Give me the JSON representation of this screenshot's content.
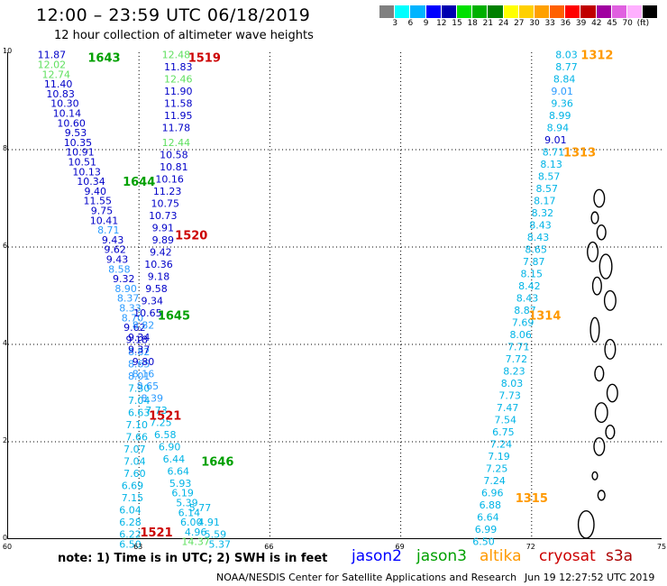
{
  "header": {
    "title": "12:00 – 23:59 UTC 06/18/2019",
    "subtitle": "12 hour collection of altimeter wave heights"
  },
  "color_scale": {
    "colors": [
      "#808080",
      "#00ffff",
      "#00b4ff",
      "#0000ff",
      "#0000b0",
      "#00e000",
      "#00b000",
      "#008000",
      "#ffff00",
      "#ffd000",
      "#ffa000",
      "#ff6000",
      "#ff0000",
      "#c00000",
      "#a000a0",
      "#e060e0",
      "#ffb0ff",
      "#000000"
    ],
    "labels": [
      "3",
      "6",
      "9",
      "12",
      "15",
      "18",
      "21",
      "24",
      "27",
      "30",
      "33",
      "36",
      "39",
      "42",
      "45",
      "70",
      "(ft)"
    ]
  },
  "axes": {
    "x_ticks": [
      "60",
      "63",
      "66",
      "69",
      "72",
      "75"
    ],
    "y_ticks": [
      "0",
      "2",
      "4",
      "6",
      "8",
      "10"
    ],
    "xlim": [
      60,
      75
    ],
    "ylim": [
      0,
      10
    ]
  },
  "satellite_colors": {
    "jason2": "#0000ff",
    "jason3": "#00a000",
    "altika": "#ff9900",
    "cryosat": "#cc0000",
    "s3a": "#aa0000"
  },
  "level_colors": {
    "c6": "#00b4e6",
    "c9": "#2b9bff",
    "c12": "#0000c8",
    "c15": "#60e060"
  },
  "pass_labels": [
    {
      "text": "1643",
      "lon": 62.2,
      "lat": 9.9,
      "sat": "jason3"
    },
    {
      "text": "1519",
      "lon": 64.5,
      "lat": 9.9,
      "sat": "cryosat"
    },
    {
      "text": "1312",
      "lon": 73.5,
      "lat": 9.95,
      "sat": "altika"
    },
    {
      "text": "1313",
      "lon": 73.1,
      "lat": 7.95,
      "sat": "altika"
    },
    {
      "text": "1644",
      "lon": 63.0,
      "lat": 7.35,
      "sat": "jason3"
    },
    {
      "text": "1520",
      "lon": 64.2,
      "lat": 6.25,
      "sat": "cryosat"
    },
    {
      "text": "1645",
      "lon": 63.8,
      "lat": 4.6,
      "sat": "jason3"
    },
    {
      "text": "1314",
      "lon": 72.3,
      "lat": 4.6,
      "sat": "altika"
    },
    {
      "text": "1521",
      "lon": 63.6,
      "lat": 2.55,
      "sat": "cryosat"
    },
    {
      "text": "1646",
      "lon": 64.8,
      "lat": 1.6,
      "sat": "jason3"
    },
    {
      "text": "1315",
      "lon": 72.0,
      "lat": 0.85,
      "sat": "altika"
    },
    {
      "text": "1521",
      "lon": 63.4,
      "lat": 0.15,
      "sat": "cryosat"
    }
  ],
  "tracks": [
    {
      "name": "jason3_1643",
      "points": [
        [
          "11.87",
          61.0,
          9.95,
          "c12"
        ],
        [
          "12.02",
          61.0,
          9.75,
          "c15"
        ],
        [
          "12.74",
          61.1,
          9.55,
          "c15"
        ],
        [
          "11.40",
          61.15,
          9.35,
          "c12"
        ],
        [
          "10.83",
          61.2,
          9.15,
          "c12"
        ],
        [
          "10.30",
          61.3,
          8.95,
          "c12"
        ],
        [
          "10.14",
          61.35,
          8.75,
          "c12"
        ],
        [
          "10.60",
          61.45,
          8.55,
          "c12"
        ],
        [
          "9.53",
          61.55,
          8.35,
          "c12"
        ],
        [
          "10.35",
          61.6,
          8.15,
          "c12"
        ],
        [
          "10.91",
          61.65,
          7.95,
          "c12"
        ],
        [
          "10.51",
          61.7,
          7.75,
          "c12"
        ],
        [
          "10.13",
          61.8,
          7.55,
          "c12"
        ],
        [
          "10.34",
          61.9,
          7.35,
          "c12"
        ],
        [
          "9.40",
          62.0,
          7.15,
          "c12"
        ],
        [
          "11.55",
          62.05,
          6.95,
          "c12"
        ],
        [
          "9.75",
          62.15,
          6.75,
          "c12"
        ],
        [
          "10.41",
          62.2,
          6.55,
          "c12"
        ],
        [
          "8.71",
          62.3,
          6.35,
          "c9"
        ],
        [
          "9.43",
          62.4,
          6.15,
          "c12"
        ],
        [
          "9.62",
          62.45,
          5.95,
          "c12"
        ],
        [
          "9.43",
          62.5,
          5.75,
          "c12"
        ],
        [
          "8.58",
          62.55,
          5.55,
          "c9"
        ],
        [
          "9.32",
          62.65,
          5.35,
          "c12"
        ],
        [
          "8.90",
          62.7,
          5.15,
          "c9"
        ],
        [
          "8.37",
          62.75,
          4.95,
          "c9"
        ],
        [
          "8.33",
          62.8,
          4.75,
          "c9"
        ],
        [
          "8.70",
          62.85,
          4.55,
          "c9"
        ],
        [
          "9.62",
          62.9,
          4.35,
          "c12"
        ],
        [
          "9.18",
          62.95,
          4.1,
          "c12"
        ],
        [
          "8.82",
          63.0,
          3.85,
          "c9"
        ],
        [
          "8.65",
          63.0,
          3.6,
          "c9"
        ],
        [
          "8.01",
          63.0,
          3.35,
          "c9"
        ],
        [
          "7.30",
          63.0,
          3.1,
          "c6"
        ],
        [
          "7.04",
          63.0,
          2.85,
          "c6"
        ],
        [
          "6.63",
          63.0,
          2.6,
          "c6"
        ],
        [
          "7.10",
          62.95,
          2.35,
          "c6"
        ],
        [
          "7.66",
          62.95,
          2.1,
          "c6"
        ],
        [
          "7.07",
          62.9,
          1.85,
          "c6"
        ],
        [
          "7.04",
          62.9,
          1.6,
          "c6"
        ],
        [
          "7.60",
          62.9,
          1.35,
          "c6"
        ],
        [
          "6.69",
          62.85,
          1.1,
          "c6"
        ],
        [
          "7.15",
          62.85,
          0.85,
          "c6"
        ],
        [
          "6.04",
          62.8,
          0.6,
          "c6"
        ],
        [
          "6.28",
          62.8,
          0.35,
          "c6"
        ],
        [
          "6.22",
          62.8,
          0.1,
          "c6"
        ],
        [
          "6.50",
          62.8,
          -0.1,
          "c6"
        ]
      ]
    },
    {
      "name": "cryosat_1519",
      "points": [
        [
          "12.48",
          63.85,
          9.95,
          "c15"
        ],
        [
          "11.83",
          63.9,
          9.7,
          "c12"
        ],
        [
          "12.46",
          63.9,
          9.45,
          "c15"
        ],
        [
          "11.90",
          63.9,
          9.2,
          "c12"
        ],
        [
          "11.58",
          63.9,
          8.95,
          "c12"
        ],
        [
          "11.95",
          63.9,
          8.7,
          "c12"
        ],
        [
          "11.78",
          63.85,
          8.45,
          "c12"
        ],
        [
          "12.44",
          63.85,
          8.15,
          "c15"
        ],
        [
          "10.58",
          63.8,
          7.9,
          "c12"
        ],
        [
          "10.81",
          63.8,
          7.65,
          "c12"
        ],
        [
          "10.16",
          63.7,
          7.4,
          "c12"
        ],
        [
          "11.23",
          63.65,
          7.15,
          "c12"
        ],
        [
          "10.75",
          63.6,
          6.9,
          "c12"
        ],
        [
          "10.73",
          63.55,
          6.65,
          "c12"
        ],
        [
          "9.91",
          63.55,
          6.4,
          "c12"
        ],
        [
          "9.89",
          63.55,
          6.15,
          "c12"
        ],
        [
          "9.42",
          63.5,
          5.9,
          "c12"
        ],
        [
          "10.36",
          63.45,
          5.65,
          "c12"
        ],
        [
          "9.18",
          63.45,
          5.4,
          "c12"
        ],
        [
          "9.58",
          63.4,
          5.15,
          "c12"
        ],
        [
          "9.34",
          63.3,
          4.9,
          "c12"
        ],
        [
          "10.65",
          63.2,
          4.65,
          "c12"
        ],
        [
          "8.82",
          63.1,
          4.4,
          "c9"
        ],
        [
          "9.34",
          63.0,
          4.15,
          "c12"
        ],
        [
          "9.37",
          63.0,
          3.9,
          "c12"
        ],
        [
          "9.80",
          63.1,
          3.65,
          "c12"
        ],
        [
          "8.16",
          63.1,
          3.4,
          "c9"
        ],
        [
          "8.65",
          63.2,
          3.15,
          "c9"
        ],
        [
          "8.39",
          63.3,
          2.9,
          "c9"
        ],
        [
          "7.73",
          63.4,
          2.65,
          "c6"
        ],
        [
          "7.25",
          63.5,
          2.4,
          "c6"
        ],
        [
          "6.58",
          63.6,
          2.15,
          "c6"
        ],
        [
          "6.90",
          63.7,
          1.9,
          "c6"
        ],
        [
          "6.44",
          63.8,
          1.65,
          "c6"
        ],
        [
          "6.64",
          63.9,
          1.4,
          "c6"
        ],
        [
          "5.93",
          63.95,
          1.15,
          "c6"
        ],
        [
          "6.19",
          64.0,
          0.95,
          "c6"
        ],
        [
          "5.39",
          64.1,
          0.75,
          "c6"
        ],
        [
          "6.14",
          64.15,
          0.55,
          "c6"
        ],
        [
          "6.00",
          64.2,
          0.35,
          "c6"
        ],
        [
          "4.96",
          64.3,
          0.15,
          "c6"
        ],
        [
          "14.37",
          64.3,
          -0.05,
          "c15"
        ]
      ]
    },
    {
      "name": "altika_1312",
      "points": [
        [
          "8.03",
          72.8,
          9.95,
          "c6"
        ],
        [
          "8.77",
          72.8,
          9.7,
          "c6"
        ],
        [
          "8.84",
          72.75,
          9.45,
          "c6"
        ],
        [
          "9.01",
          72.7,
          9.2,
          "c9"
        ],
        [
          "9.36",
          72.7,
          8.95,
          "c6"
        ],
        [
          "8.99",
          72.65,
          8.7,
          "c6"
        ],
        [
          "8.94",
          72.6,
          8.45,
          "c6"
        ],
        [
          "9.01",
          72.55,
          8.2,
          "c12"
        ],
        [
          "8.71",
          72.5,
          7.95,
          "c6"
        ],
        [
          "8.13",
          72.45,
          7.7,
          "c6"
        ],
        [
          "8.57",
          72.4,
          7.45,
          "c6"
        ],
        [
          "8.57",
          72.35,
          7.2,
          "c6"
        ],
        [
          "8.17",
          72.3,
          6.95,
          "c6"
        ],
        [
          "8.32",
          72.25,
          6.7,
          "c6"
        ],
        [
          "8.43",
          72.2,
          6.45,
          "c6"
        ],
        [
          "8.43",
          72.15,
          6.2,
          "c6"
        ],
        [
          "8.65",
          72.1,
          5.95,
          "c6"
        ],
        [
          "7.87",
          72.05,
          5.7,
          "c6"
        ],
        [
          "8.15",
          72.0,
          5.45,
          "c6"
        ],
        [
          "8.42",
          71.95,
          5.2,
          "c6"
        ],
        [
          "8.43",
          71.9,
          4.95,
          "c6"
        ],
        [
          "8.87",
          71.85,
          4.7,
          "c6"
        ],
        [
          "7.69",
          71.8,
          4.45,
          "c6"
        ],
        [
          "8.06",
          71.75,
          4.2,
          "c6"
        ],
        [
          "7.71",
          71.7,
          3.95,
          "c6"
        ],
        [
          "7.72",
          71.65,
          3.7,
          "c6"
        ],
        [
          "8.23",
          71.6,
          3.45,
          "c6"
        ],
        [
          "8.03",
          71.55,
          3.2,
          "c6"
        ],
        [
          "7.73",
          71.5,
          2.95,
          "c6"
        ],
        [
          "7.47",
          71.45,
          2.7,
          "c6"
        ],
        [
          "7.54",
          71.4,
          2.45,
          "c6"
        ],
        [
          "6.75",
          71.35,
          2.2,
          "c6"
        ],
        [
          "7.24",
          71.3,
          1.95,
          "c6"
        ],
        [
          "7.19",
          71.25,
          1.7,
          "c6"
        ],
        [
          "7.25",
          71.2,
          1.45,
          "c6"
        ],
        [
          "7.24",
          71.15,
          1.2,
          "c6"
        ],
        [
          "6.96",
          71.1,
          0.95,
          "c6"
        ],
        [
          "6.88",
          71.05,
          0.7,
          "c6"
        ],
        [
          "6.64",
          71.0,
          0.45,
          "c6"
        ],
        [
          "6.99",
          70.95,
          0.2,
          "c6"
        ],
        [
          "6.50",
          70.9,
          -0.05,
          "c6"
        ]
      ]
    },
    {
      "name": "s3a_tail",
      "points": [
        [
          "5.77",
          64.4,
          0.65,
          "c6"
        ],
        [
          "4.91",
          64.6,
          0.35,
          "c6"
        ],
        [
          "5.59",
          64.75,
          0.1,
          "c6"
        ],
        [
          "5.37",
          64.85,
          -0.1,
          "c6"
        ]
      ]
    }
  ],
  "footer": {
    "note": "note:  1) Time is in UTC;  2) SWH is in feet",
    "legend": [
      "jason2",
      "jason3",
      "altika",
      "cryosat",
      "s3a"
    ],
    "credit": "NOAA/NESDIS Center for Satellite Applications and Research",
    "timestamp": "Jun 19 12:27:52 UTC 2019"
  }
}
